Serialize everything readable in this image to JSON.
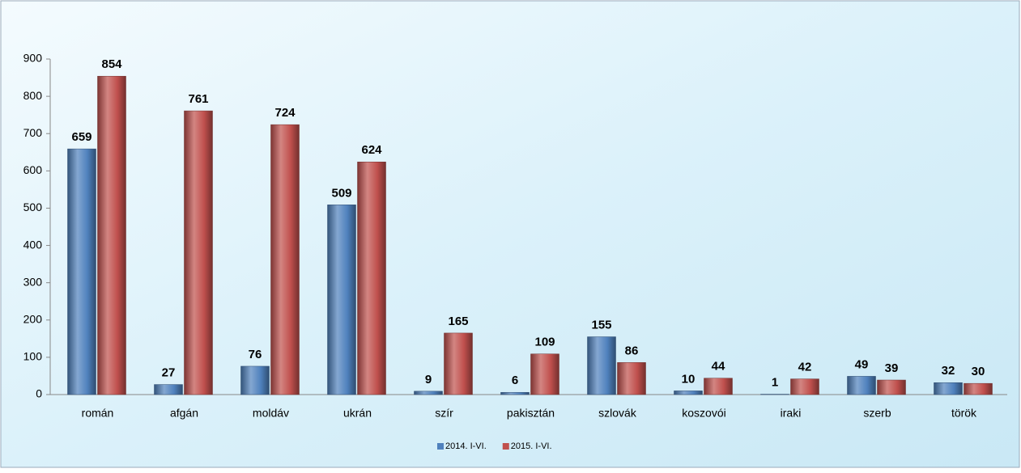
{
  "chart_data": {
    "type": "bar",
    "categories": [
      "román",
      "afgán",
      "moldáv",
      "ukrán",
      "szír",
      "pakisztán",
      "szlovák",
      "koszovói",
      "iraki",
      "szerb",
      "török"
    ],
    "series": [
      {
        "name": "2014. I-VI.",
        "color": "#4f81bd",
        "values": [
          659,
          27,
          76,
          509,
          9,
          6,
          155,
          10,
          1,
          49,
          32
        ]
      },
      {
        "name": "2015. I-VI.",
        "color": "#c0504d",
        "values": [
          854,
          761,
          724,
          624,
          165,
          109,
          86,
          44,
          42,
          39,
          30
        ]
      }
    ],
    "ylim": [
      0,
      900
    ],
    "yticks": [
      0,
      100,
      200,
      300,
      400,
      500,
      600,
      700,
      800,
      900
    ],
    "legend": "bottom",
    "grid": false
  }
}
